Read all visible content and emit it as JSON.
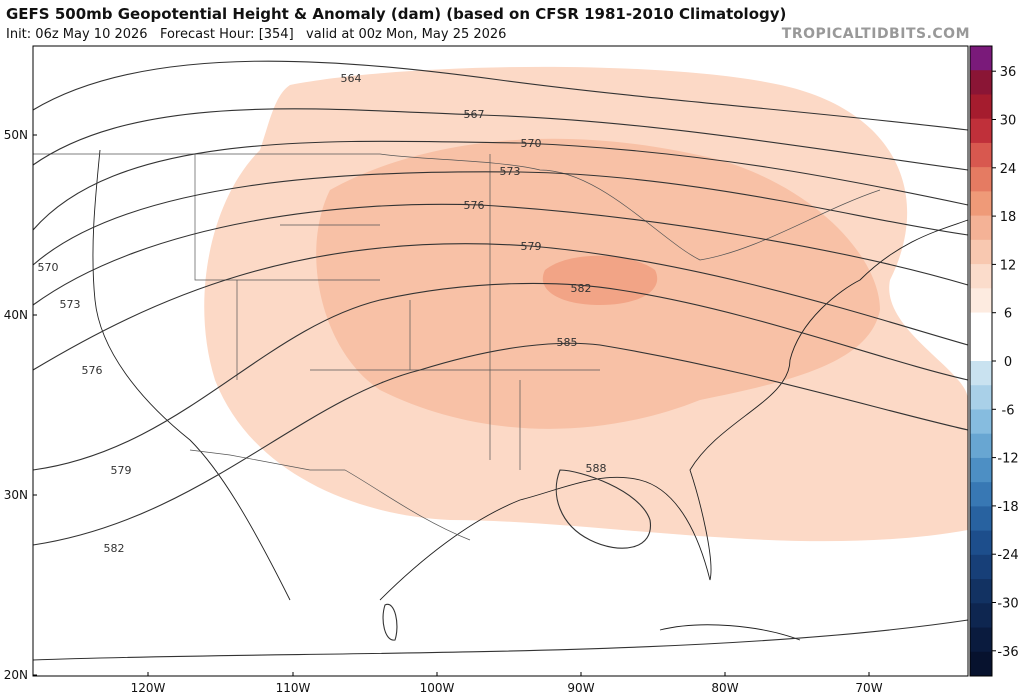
{
  "header": {
    "title": "GEFS 500mb Geopotential Height & Anomaly (dam) (based on CFSR 1981-2010 Climatology)",
    "subtitle": "Init: 06z May 10 2026   Forecast Hour: [354]   valid at 00z Mon, May 25 2026",
    "watermark": "TROPICALTIDBITS.COM"
  },
  "map": {
    "lat_labels": [
      "50N",
      "40N",
      "30N",
      "20N"
    ],
    "lon_labels": [
      "120W",
      "110W",
      "100W",
      "90W",
      "80W",
      "70W"
    ],
    "contour_labels": [
      564,
      567,
      570,
      573,
      576,
      579,
      582,
      585,
      588,
      570,
      573,
      576,
      579,
      582
    ]
  },
  "colorbar": {
    "ticks": [
      36,
      30,
      24,
      18,
      12,
      6,
      0,
      -6,
      -12,
      -18,
      -24,
      -30,
      -36
    ]
  }
}
